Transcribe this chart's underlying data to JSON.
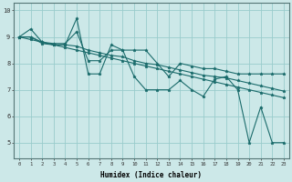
{
  "xlabel": "Humidex (Indice chaleur)",
  "ylabel": "",
  "background_color": "#cce8e8",
  "line_color": "#1a6b6b",
  "grid_color": "#99cccc",
  "xlim": [
    -0.5,
    23.5
  ],
  "ylim": [
    4.4,
    10.3
  ],
  "xticks": [
    0,
    1,
    2,
    3,
    4,
    5,
    6,
    7,
    8,
    9,
    10,
    11,
    12,
    13,
    14,
    15,
    16,
    17,
    18,
    19,
    20,
    21,
    22,
    23
  ],
  "yticks": [
    5,
    6,
    7,
    8,
    9,
    10
  ],
  "lines": [
    [
      9.0,
      9.3,
      8.8,
      8.7,
      8.7,
      9.7,
      7.6,
      7.6,
      8.7,
      8.5,
      7.5,
      7.0,
      7.0,
      7.0,
      7.35,
      7.0,
      6.75,
      7.4,
      7.5,
      7.0,
      5.0,
      6.35,
      5.0,
      5.0
    ],
    [
      9.0,
      9.0,
      8.8,
      8.75,
      8.75,
      9.2,
      8.1,
      8.1,
      8.5,
      8.5,
      8.5,
      8.5,
      8.0,
      7.5,
      8.0,
      7.9,
      7.8,
      7.8,
      7.7,
      7.6,
      7.6,
      7.6,
      7.6,
      7.6
    ],
    [
      9.0,
      9.0,
      8.75,
      8.7,
      8.7,
      8.65,
      8.5,
      8.4,
      8.3,
      8.25,
      8.1,
      8.0,
      7.95,
      7.85,
      7.75,
      7.65,
      7.55,
      7.5,
      7.45,
      7.35,
      7.25,
      7.15,
      7.05,
      6.95
    ],
    [
      9.0,
      8.9,
      8.8,
      8.7,
      8.6,
      8.5,
      8.4,
      8.3,
      8.2,
      8.1,
      8.0,
      7.9,
      7.8,
      7.7,
      7.6,
      7.5,
      7.4,
      7.3,
      7.2,
      7.1,
      7.0,
      6.9,
      6.8,
      6.7
    ]
  ]
}
